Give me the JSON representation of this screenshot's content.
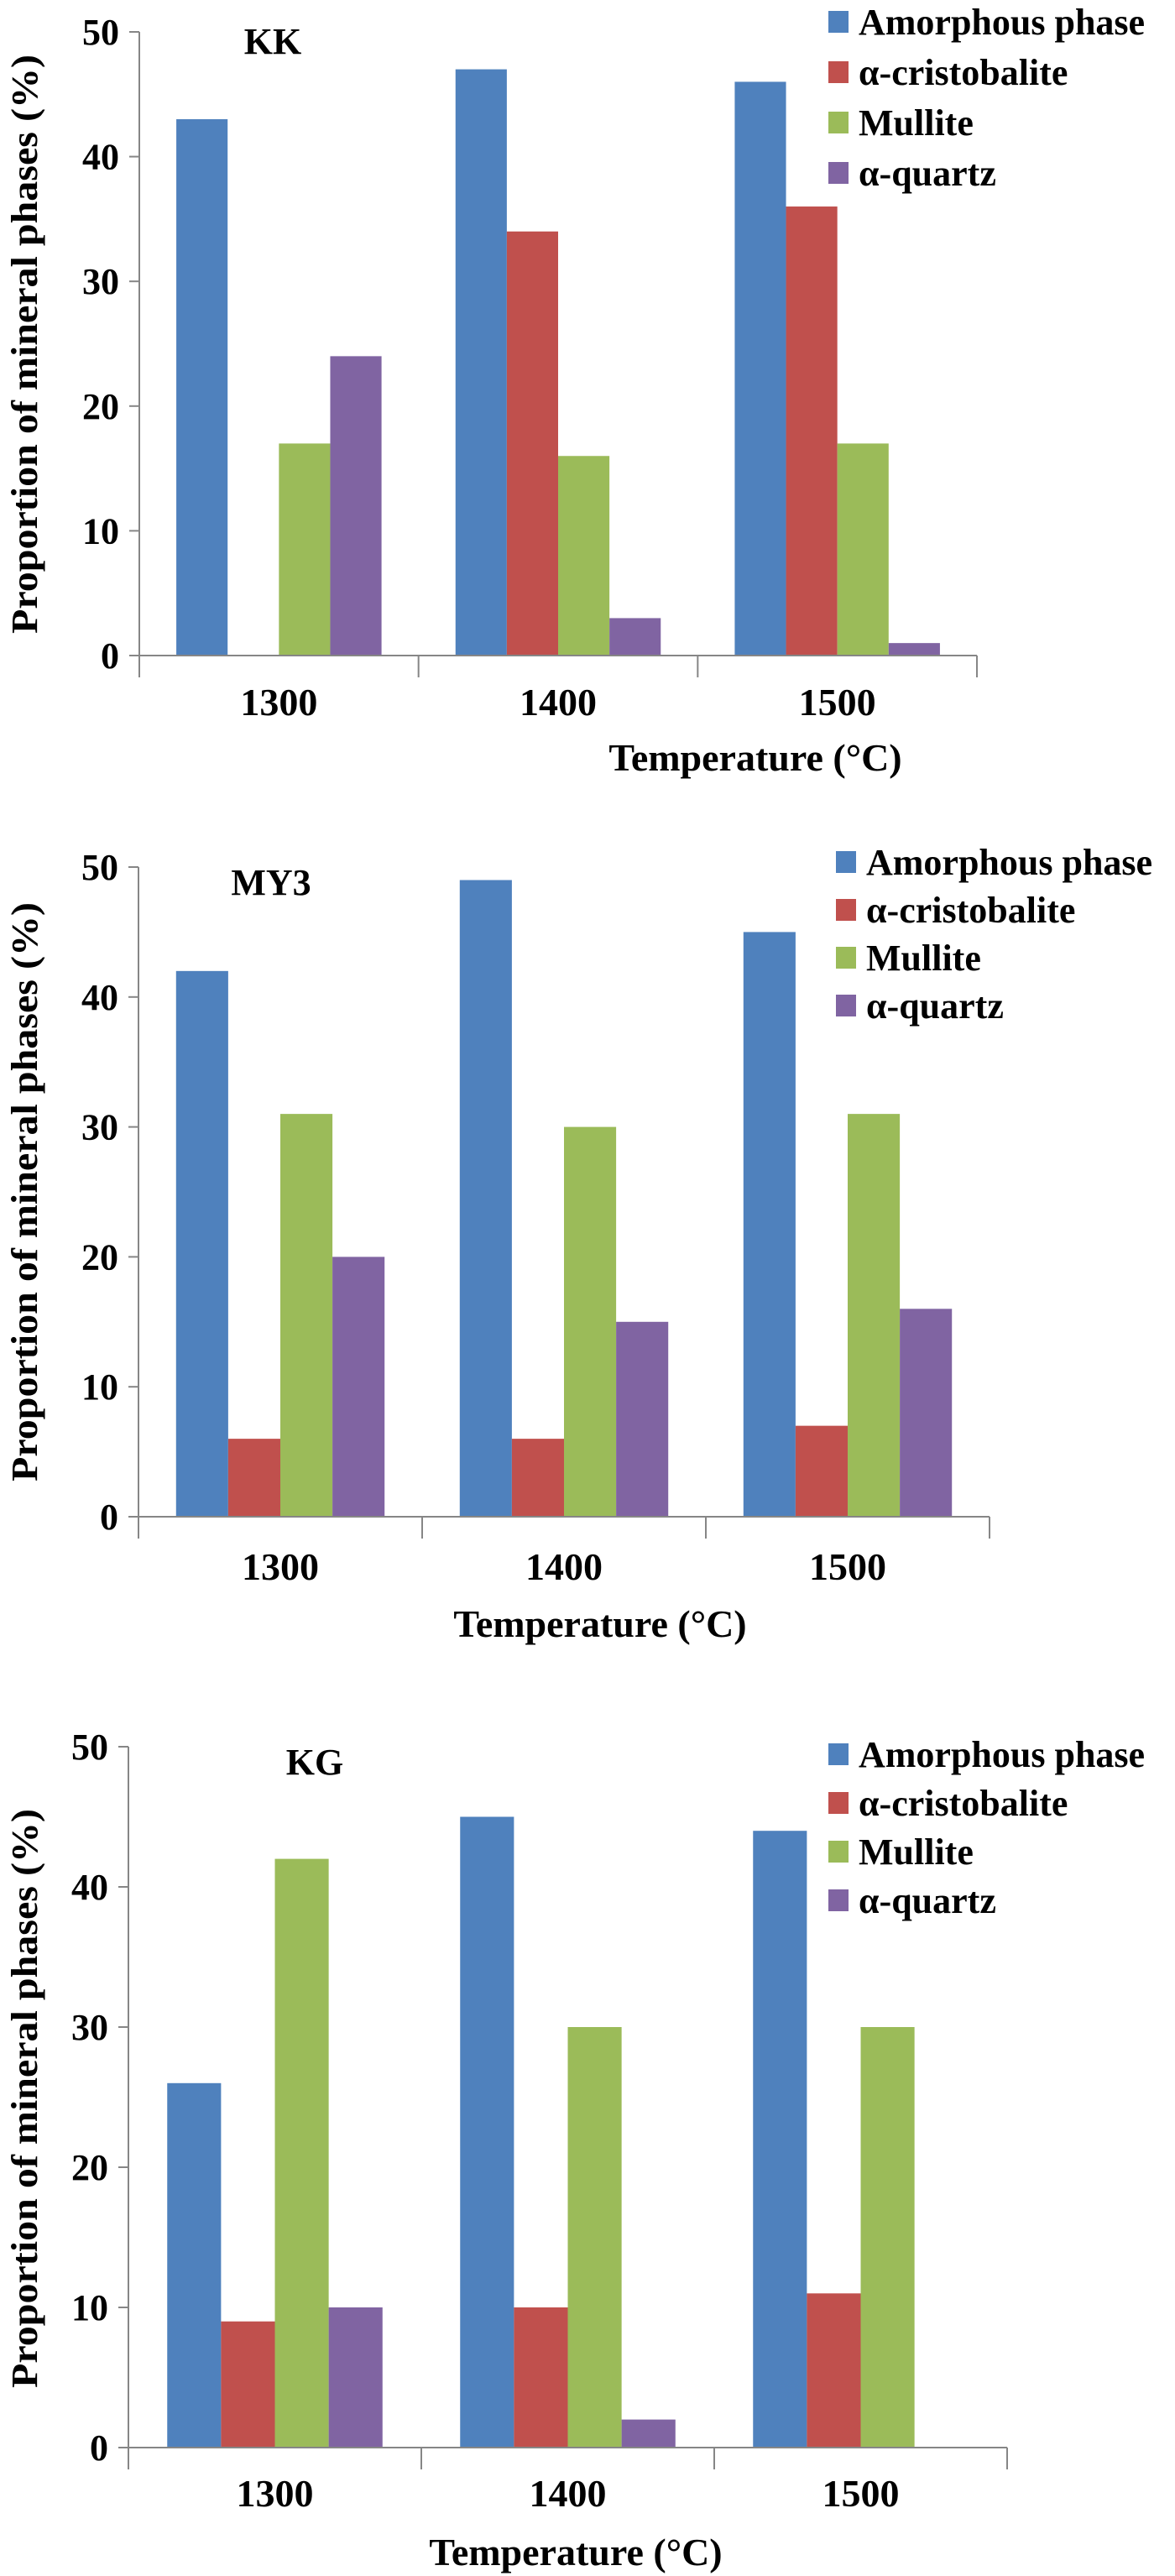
{
  "chart_data": [
    {
      "type": "bar",
      "title": "KK",
      "xlabel": "Temperature (°C)",
      "ylabel": "Proportion of mineral phases (%)",
      "categories": [
        "1300",
        "1400",
        "1500"
      ],
      "ylim": [
        0,
        50
      ],
      "yticks": [
        "0",
        "10",
        "20",
        "30",
        "40",
        "50"
      ],
      "grid": false,
      "legend": "top-right",
      "series": [
        {
          "name": "Amorphous phase",
          "color": "#4f81bd",
          "values": [
            43,
            47,
            46
          ]
        },
        {
          "name": "α-cristobalite",
          "color": "#c0504d",
          "values": [
            0,
            34,
            36
          ]
        },
        {
          "name": "Mullite",
          "color": "#9bbb59",
          "values": [
            17,
            16,
            17
          ]
        },
        {
          "name": "α-quartz",
          "color": "#8064a2",
          "values": [
            24,
            3,
            1
          ]
        }
      ]
    },
    {
      "type": "bar",
      "title": "MY3",
      "xlabel": "Temperature (°C)",
      "ylabel": "Proportion of mineral phases (%)",
      "categories": [
        "1300",
        "1400",
        "1500"
      ],
      "ylim": [
        0,
        50
      ],
      "yticks": [
        "0",
        "10",
        "20",
        "30",
        "40",
        "50"
      ],
      "grid": false,
      "legend": "top-right",
      "series": [
        {
          "name": "Amorphous phase",
          "color": "#4f81bd",
          "values": [
            42,
            49,
            45
          ]
        },
        {
          "name": "α-cristobalite",
          "color": "#c0504d",
          "values": [
            6,
            6,
            7
          ]
        },
        {
          "name": "Mullite",
          "color": "#9bbb59",
          "values": [
            31,
            30,
            31
          ]
        },
        {
          "name": "α-quartz",
          "color": "#8064a2",
          "values": [
            20,
            15,
            16
          ]
        }
      ]
    },
    {
      "type": "bar",
      "title": "KG",
      "xlabel": "Temperature (°C)",
      "ylabel": "Proportion of mineral phases (%)",
      "categories": [
        "1300",
        "1400",
        "1500"
      ],
      "ylim": [
        0,
        50
      ],
      "yticks": [
        "0",
        "10",
        "20",
        "30",
        "40",
        "50"
      ],
      "grid": false,
      "legend": "top-right",
      "series": [
        {
          "name": "Amorphous phase",
          "color": "#4f81bd",
          "values": [
            26,
            45,
            44
          ]
        },
        {
          "name": "α-cristobalite",
          "color": "#c0504d",
          "values": [
            9,
            10,
            11
          ]
        },
        {
          "name": "Mullite",
          "color": "#9bbb59",
          "values": [
            42,
            30,
            30
          ]
        },
        {
          "name": "α-quartz",
          "color": "#8064a2",
          "values": [
            10,
            2,
            0
          ]
        }
      ]
    }
  ]
}
